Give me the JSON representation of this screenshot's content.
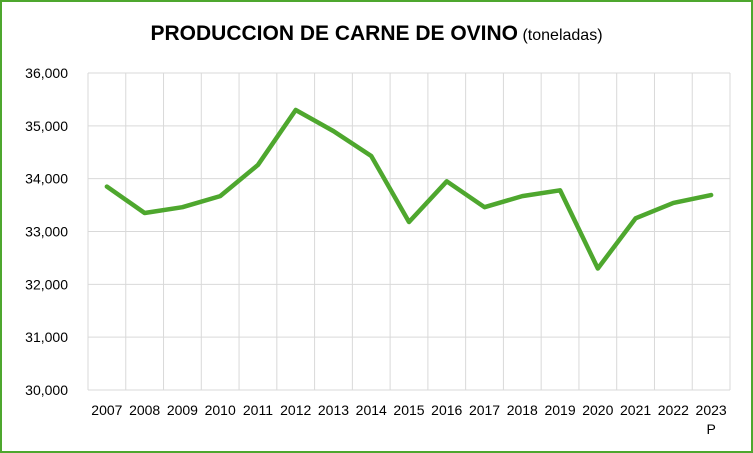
{
  "chart_data": {
    "type": "line",
    "title": "PRODUCCION DE CARNE DE OVINO",
    "subtitle": "(toneladas)",
    "x": [
      "2007",
      "2008",
      "2009",
      "2010",
      "2011",
      "2012",
      "2013",
      "2014",
      "2015",
      "2016",
      "2017",
      "2018",
      "2019",
      "2020",
      "2021",
      "2022",
      "2023"
    ],
    "x_suffix_last": "P",
    "series": [
      {
        "values": [
          33850,
          33350,
          33460,
          33670,
          34260,
          35300,
          34900,
          34430,
          33180,
          33950,
          33460,
          33670,
          33780,
          32300,
          33250,
          33540,
          33690
        ],
        "color": "#4ea72e"
      }
    ],
    "ylim": [
      30000,
      36000
    ],
    "yticks": [
      "30,000",
      "31,000",
      "32,000",
      "33,000",
      "34,000",
      "35,000",
      "36,000"
    ],
    "grid": true,
    "legend": "none"
  }
}
